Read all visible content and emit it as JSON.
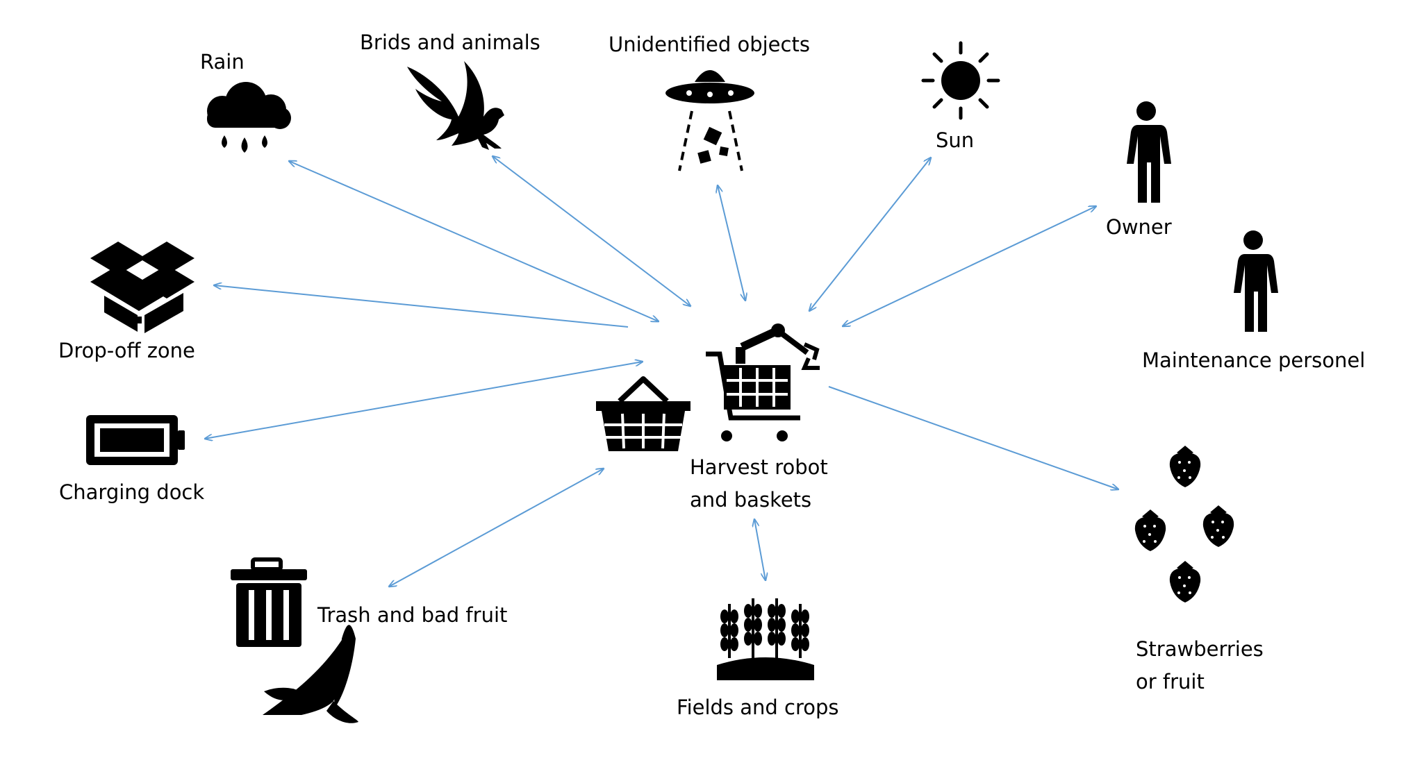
{
  "labels": {
    "rain": "Rain",
    "birds": "Brids and animals",
    "ufo": "Unidentified objects",
    "sun": "Sun",
    "owner": "Owner",
    "maintenance": "Maintenance personel",
    "dropoff": "Drop-off zone",
    "charging": "Charging dock",
    "trash": "Trash and bad fruit",
    "fields": "Fields and crops",
    "strawberries": "Strawberries\nor fruit",
    "robot": "Harvest robot\nand baskets"
  },
  "icons": [
    "rain-cloud-icon",
    "eagle-icon",
    "ufo-icon",
    "sun-icon",
    "person-icon",
    "box-icon",
    "battery-icon",
    "basket-icon",
    "robot-cart-icon",
    "trash-can-icon",
    "banana-peel-icon",
    "wheat-field-icon",
    "strawberry-icon"
  ],
  "colors": {
    "arrow": "#5B9BD5",
    "icon": "#000000"
  }
}
